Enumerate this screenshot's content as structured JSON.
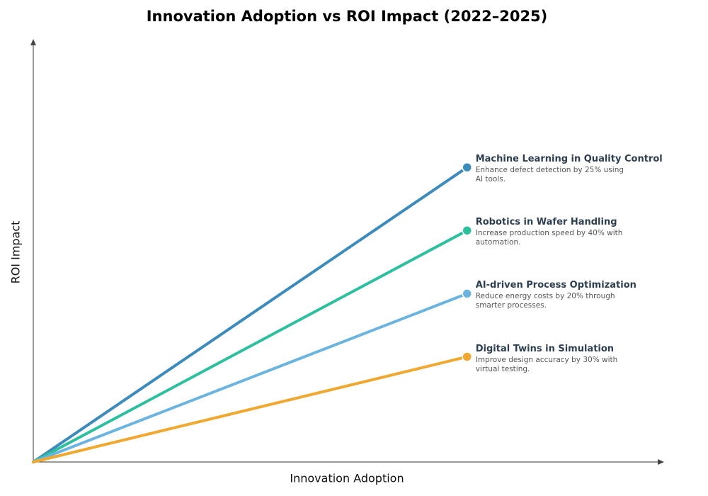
{
  "chart_data": {
    "type": "line",
    "title": "Innovation Adoption vs ROI Impact (2022–2025)",
    "x_label": "Innovation Adoption",
    "y_label": "ROI Impact",
    "xlim": [
      0,
      1
    ],
    "ylim": [
      0,
      1
    ],
    "series": [
      {
        "name": "Machine Learning in Quality Control",
        "description": "Enhance defect detection by 25% using AI tools.",
        "color": "#3d8bbd",
        "x": [
          0,
          0.69
        ],
        "values": [
          0,
          0.7
        ]
      },
      {
        "name": "Robotics in Wafer Handling",
        "description": "Increase production speed by 40% with automation.",
        "color": "#2ebf9f",
        "x": [
          0,
          0.69
        ],
        "values": [
          0,
          0.55
        ]
      },
      {
        "name": "AI-driven Process Optimization",
        "description": "Reduce energy costs by 20% through smarter processes.",
        "color": "#6cb4e0",
        "x": [
          0,
          0.69
        ],
        "values": [
          0,
          0.4
        ]
      },
      {
        "name": "Digital Twins in Simulation",
        "description": "Improve design accuracy by 30% with virtual testing.",
        "color": "#f0a830",
        "x": [
          0,
          0.69
        ],
        "values": [
          0,
          0.25
        ]
      }
    ]
  }
}
